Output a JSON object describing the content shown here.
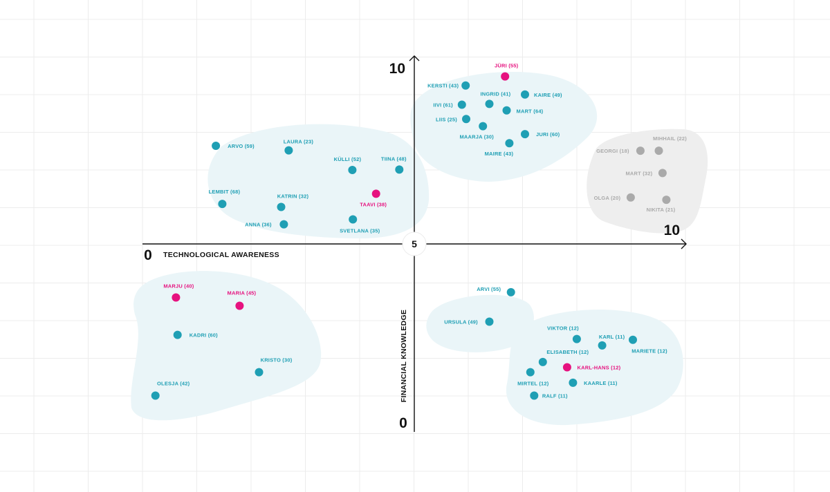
{
  "colors": {
    "persona": "#1f9fb4",
    "highlight": "#e6127f",
    "muted": "#aaaaaa",
    "cluster": "#eaf5f8",
    "cluster_gray": "#eeeeee",
    "grid": "#ececec",
    "axis": "#111111"
  },
  "chart_data": {
    "type": "scatter",
    "xlabel": "TECHNOLOGICAL AWARENESS",
    "ylabel": "FINANCIAL KNOWLEDGE",
    "xlim": [
      0,
      10
    ],
    "ylim": [
      0,
      10
    ],
    "center_label": "5",
    "tick_labels": {
      "x_min": "0",
      "x_max": "10",
      "y_min": "0",
      "y_max": "10"
    },
    "grid": true,
    "series": [
      {
        "key": "persona",
        "points": [
          {
            "label": "KERSTI (43)",
            "x": 5.99,
            "y": 9.2
          },
          {
            "label": "INGRID (41)",
            "x": 6.43,
            "y": 8.71
          },
          {
            "label": "KAIRE (49)",
            "x": 7.09,
            "y": 8.96
          },
          {
            "label": "IIVI (61)",
            "x": 5.92,
            "y": 8.69
          },
          {
            "label": "MART (64)",
            "x": 6.75,
            "y": 8.54
          },
          {
            "label": "LIIS (25)",
            "x": 6.0,
            "y": 8.31
          },
          {
            "label": "MAARJA (30)",
            "x": 6.31,
            "y": 8.12
          },
          {
            "label": "JURI (60)",
            "x": 7.09,
            "y": 7.91
          },
          {
            "label": "MAIRE (43)",
            "x": 6.8,
            "y": 7.67
          },
          {
            "label": "ARVO (59)",
            "x": 1.36,
            "y": 7.6
          },
          {
            "label": "LAURA (23)",
            "x": 2.71,
            "y": 7.48
          },
          {
            "label": "KÜLLI (52)",
            "x": 3.89,
            "y": 6.96
          },
          {
            "label": "TIINA (48)",
            "x": 4.76,
            "y": 6.97
          },
          {
            "label": "LEMBIT (68)",
            "x": 1.48,
            "y": 6.06
          },
          {
            "label": "KATRIN (32)",
            "x": 2.57,
            "y": 5.98
          },
          {
            "label": "ANNA (36)",
            "x": 2.62,
            "y": 5.52
          },
          {
            "label": "SVETLANA (35)",
            "x": 3.9,
            "y": 5.65
          },
          {
            "label": "KADRI (60)",
            "x": 0.65,
            "y": 2.59
          },
          {
            "label": "KRISTO (30)",
            "x": 2.16,
            "y": 1.6
          },
          {
            "label": "OLESJA (42)",
            "x": 0.24,
            "y": 0.98
          },
          {
            "label": "ARVI (55)",
            "x": 6.83,
            "y": 3.72
          },
          {
            "label": "URSULA (49)",
            "x": 6.43,
            "y": 2.94
          },
          {
            "label": "VIKTOR (12)",
            "x": 8.05,
            "y": 2.48
          },
          {
            "label": "KARL (11)",
            "x": 8.52,
            "y": 2.31
          },
          {
            "label": "MARIETE (12)",
            "x": 9.09,
            "y": 2.46
          },
          {
            "label": "ELISABETH (12)",
            "x": 7.42,
            "y": 1.87
          },
          {
            "label": "MIRTEL (12)",
            "x": 7.19,
            "y": 1.6
          },
          {
            "label": "KAARLE (11)",
            "x": 7.98,
            "y": 1.32
          },
          {
            "label": "RALF (11)",
            "x": 7.26,
            "y": 0.98
          }
        ]
      },
      {
        "key": "highlight",
        "points": [
          {
            "label": "JÜRI (55)",
            "x": 6.72,
            "y": 9.44
          },
          {
            "label": "TAAVI (38)",
            "x": 4.33,
            "y": 6.33
          },
          {
            "label": "MARJU (40)",
            "x": 0.62,
            "y": 3.58
          },
          {
            "label": "MARIA (45)",
            "x": 1.8,
            "y": 3.36
          },
          {
            "label": "KARL-HANS (12)",
            "x": 7.87,
            "y": 1.73
          }
        ]
      },
      {
        "key": "muted",
        "points": [
          {
            "label": "GEORGI (18)",
            "x": 9.23,
            "y": 7.47
          },
          {
            "label": "MIHHAIL (22)",
            "x": 9.57,
            "y": 7.47
          },
          {
            "label": "MART (32)",
            "x": 9.64,
            "y": 6.88
          },
          {
            "label": "OLGA (20)",
            "x": 9.05,
            "y": 6.23
          },
          {
            "label": "NIKITA (21)",
            "x": 9.71,
            "y": 6.17
          }
        ]
      }
    ]
  }
}
